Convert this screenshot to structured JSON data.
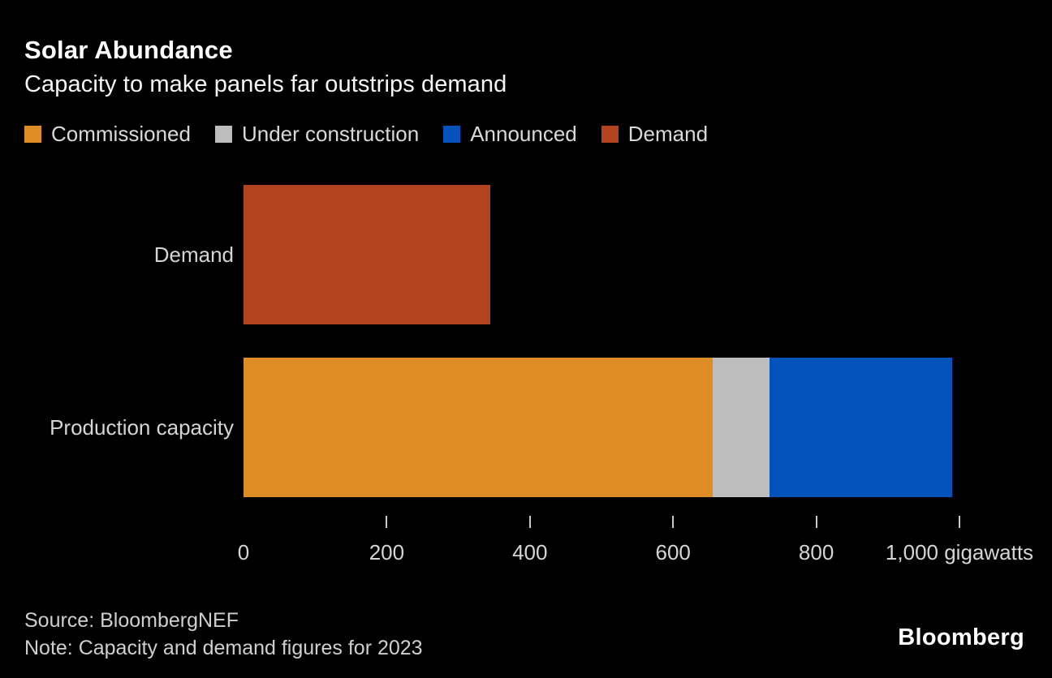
{
  "header": {
    "title": "Solar Abundance",
    "subtitle": "Capacity to make panels far outstrips demand"
  },
  "legend": {
    "items": [
      {
        "label": "Commissioned",
        "color": "#DE8C24"
      },
      {
        "label": "Under construction",
        "color": "#BDBDBD"
      },
      {
        "label": "Announced",
        "color": "#0453BC"
      },
      {
        "label": "Demand",
        "color": "#B2431E"
      }
    ]
  },
  "chart_data": {
    "type": "bar",
    "orientation": "horizontal",
    "title": "Solar Abundance",
    "subtitle": "Capacity to make panels far outstrips demand",
    "unit": "gigawatts",
    "xlim": [
      0,
      1000
    ],
    "grid": false,
    "legend_position": "top",
    "x_ticks": [
      {
        "value": 0,
        "label": "0",
        "tick_mark": false
      },
      {
        "value": 200,
        "label": "200",
        "tick_mark": true
      },
      {
        "value": 400,
        "label": "400",
        "tick_mark": true
      },
      {
        "value": 600,
        "label": "600",
        "tick_mark": true
      },
      {
        "value": 800,
        "label": "800",
        "tick_mark": true
      },
      {
        "value": 1000,
        "label": "1,000 gigawatts",
        "tick_mark": true
      }
    ],
    "rows": [
      {
        "label": "Demand",
        "total": 345,
        "segments": [
          {
            "name": "Demand",
            "value": 345,
            "color": "#B2431E"
          }
        ]
      },
      {
        "label": "Production capacity",
        "total": 990,
        "segments": [
          {
            "name": "Commissioned",
            "value": 655,
            "color": "#DE8C24"
          },
          {
            "name": "Under construction",
            "value": 80,
            "color": "#BDBDBD"
          },
          {
            "name": "Announced",
            "value": 255,
            "color": "#0453BC"
          }
        ]
      }
    ]
  },
  "footer": {
    "source": "Source: BloombergNEF",
    "note": "Note: Capacity and demand figures for 2023",
    "brand": "Bloomberg"
  }
}
